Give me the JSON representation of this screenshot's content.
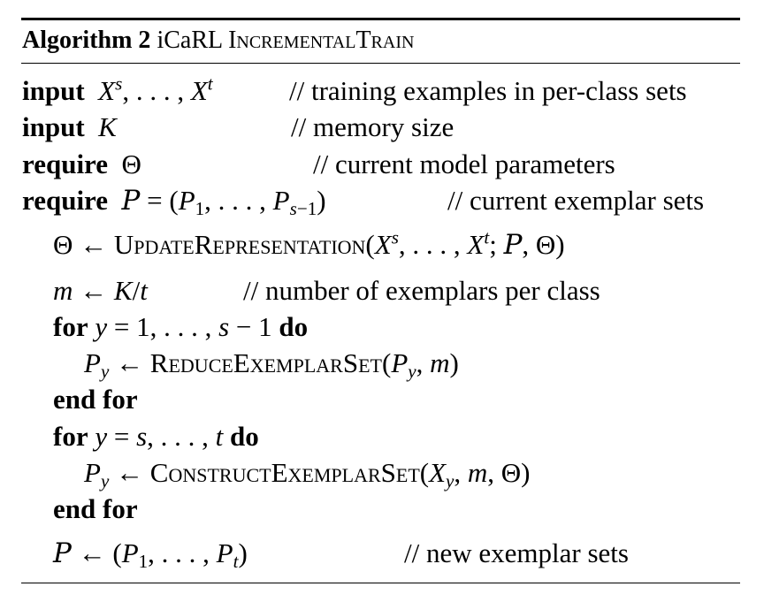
{
  "algorithm": {
    "label": "Algorithm 2",
    "name_prefix": "iCaRL",
    "name": "IncrementalTrain"
  },
  "keywords": {
    "input": "input",
    "require": "require",
    "for": "for",
    "do": "do",
    "end_for": "end for"
  },
  "functions": {
    "update": "UpdateRepresentation",
    "reduce": "ReduceExemplarSet",
    "construct": "ConstructExemplarSet"
  },
  "comments": {
    "input1": "// training examples in per-class sets",
    "input2": "// memory size",
    "require1": "// current model parameters",
    "require2": "// current exemplar sets",
    "m_line": "// number of exemplars per class",
    "final": "// new exemplar sets"
  }
}
